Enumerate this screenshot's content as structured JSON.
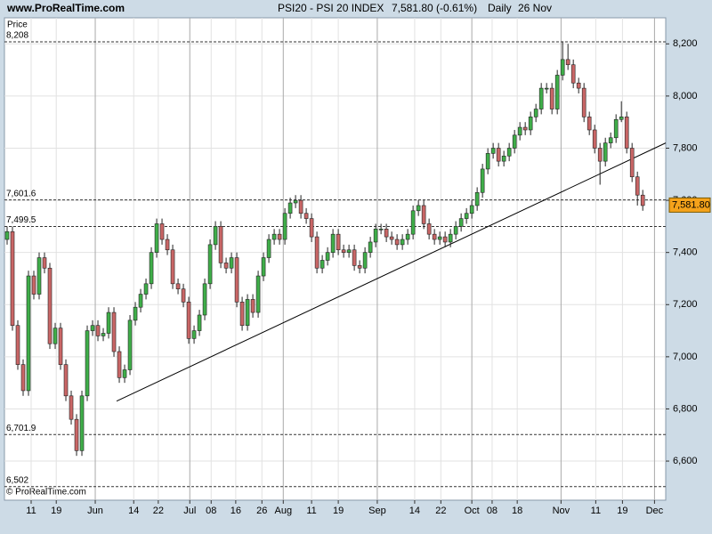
{
  "chart_data": {
    "type": "candlestick",
    "site": "www.ProRealTime.com",
    "title": "PSI20 - PSI 20 INDEX",
    "price_text": "7,581.80 (-0.61%)",
    "period": "Daily",
    "date": "26 Nov",
    "y_label": "Price",
    "copyright": "© ProRealTime.com",
    "up_color": "#3fae49",
    "down_color": "#c96666",
    "candles": [
      [
        7450,
        7500,
        7430,
        7480
      ],
      [
        7480,
        7500,
        7100,
        7120
      ],
      [
        7120,
        7140,
        6950,
        6970
      ],
      [
        6970,
        6990,
        6850,
        6870
      ],
      [
        6870,
        7330,
        6850,
        7310
      ],
      [
        7310,
        7330,
        7220,
        7240
      ],
      [
        7240,
        7400,
        7220,
        7380
      ],
      [
        7380,
        7400,
        7320,
        7340
      ],
      [
        7340,
        7360,
        7030,
        7050
      ],
      [
        7050,
        7130,
        7030,
        7110
      ],
      [
        7110,
        7130,
        6950,
        6970
      ],
      [
        6970,
        6990,
        6830,
        6850
      ],
      [
        6850,
        6870,
        6740,
        6760
      ],
      [
        6760,
        6780,
        6620,
        6640
      ],
      [
        6640,
        6870,
        6620,
        6850
      ],
      [
        6850,
        7120,
        6830,
        7100
      ],
      [
        7100,
        7140,
        7080,
        7120
      ],
      [
        7120,
        7140,
        7060,
        7080
      ],
      [
        7080,
        7110,
        7060,
        7090
      ],
      [
        7090,
        7190,
        7070,
        7170
      ],
      [
        7170,
        7190,
        7000,
        7020
      ],
      [
        7020,
        7040,
        6900,
        6920
      ],
      [
        6920,
        6970,
        6900,
        6950
      ],
      [
        6950,
        7160,
        6930,
        7140
      ],
      [
        7140,
        7210,
        7120,
        7190
      ],
      [
        7190,
        7260,
        7170,
        7240
      ],
      [
        7240,
        7300,
        7220,
        7280
      ],
      [
        7280,
        7420,
        7260,
        7400
      ],
      [
        7400,
        7530,
        7380,
        7510
      ],
      [
        7510,
        7530,
        7430,
        7450
      ],
      [
        7450,
        7470,
        7390,
        7410
      ],
      [
        7410,
        7430,
        7260,
        7280
      ],
      [
        7280,
        7300,
        7240,
        7260
      ],
      [
        7260,
        7280,
        7190,
        7210
      ],
      [
        7210,
        7230,
        7050,
        7070
      ],
      [
        7070,
        7120,
        7050,
        7100
      ],
      [
        7100,
        7180,
        7080,
        7160
      ],
      [
        7160,
        7300,
        7140,
        7280
      ],
      [
        7280,
        7450,
        7260,
        7430
      ],
      [
        7430,
        7520,
        7410,
        7500
      ],
      [
        7500,
        7520,
        7340,
        7360
      ],
      [
        7360,
        7380,
        7320,
        7340
      ],
      [
        7340,
        7400,
        7320,
        7380
      ],
      [
        7380,
        7400,
        7190,
        7210
      ],
      [
        7210,
        7230,
        7100,
        7120
      ],
      [
        7120,
        7240,
        7100,
        7220
      ],
      [
        7220,
        7240,
        7150,
        7170
      ],
      [
        7170,
        7330,
        7150,
        7310
      ],
      [
        7310,
        7400,
        7290,
        7380
      ],
      [
        7380,
        7470,
        7360,
        7450
      ],
      [
        7450,
        7490,
        7430,
        7470
      ],
      [
        7470,
        7490,
        7430,
        7450
      ],
      [
        7450,
        7570,
        7430,
        7550
      ],
      [
        7550,
        7610,
        7530,
        7590
      ],
      [
        7590,
        7620,
        7570,
        7600
      ],
      [
        7600,
        7620,
        7530,
        7550
      ],
      [
        7550,
        7570,
        7510,
        7530
      ],
      [
        7530,
        7550,
        7440,
        7460
      ],
      [
        7460,
        7480,
        7320,
        7340
      ],
      [
        7340,
        7390,
        7320,
        7370
      ],
      [
        7370,
        7420,
        7350,
        7400
      ],
      [
        7400,
        7490,
        7380,
        7470
      ],
      [
        7470,
        7490,
        7390,
        7410
      ],
      [
        7410,
        7430,
        7380,
        7400
      ],
      [
        7400,
        7430,
        7380,
        7410
      ],
      [
        7410,
        7430,
        7330,
        7350
      ],
      [
        7350,
        7370,
        7320,
        7340
      ],
      [
        7340,
        7420,
        7320,
        7400
      ],
      [
        7400,
        7460,
        7380,
        7440
      ],
      [
        7440,
        7510,
        7420,
        7490
      ],
      [
        7490,
        7510,
        7470,
        7490
      ],
      [
        7490,
        7510,
        7440,
        7460
      ],
      [
        7460,
        7480,
        7430,
        7450
      ],
      [
        7450,
        7470,
        7410,
        7430
      ],
      [
        7430,
        7470,
        7410,
        7450
      ],
      [
        7450,
        7490,
        7430,
        7470
      ],
      [
        7470,
        7580,
        7450,
        7560
      ],
      [
        7560,
        7600,
        7540,
        7580
      ],
      [
        7580,
        7600,
        7490,
        7510
      ],
      [
        7510,
        7530,
        7450,
        7470
      ],
      [
        7470,
        7490,
        7430,
        7450
      ],
      [
        7450,
        7480,
        7430,
        7460
      ],
      [
        7460,
        7480,
        7420,
        7440
      ],
      [
        7440,
        7490,
        7420,
        7470
      ],
      [
        7470,
        7520,
        7450,
        7500
      ],
      [
        7500,
        7550,
        7480,
        7530
      ],
      [
        7530,
        7570,
        7510,
        7550
      ],
      [
        7550,
        7600,
        7530,
        7580
      ],
      [
        7580,
        7650,
        7560,
        7630
      ],
      [
        7630,
        7740,
        7610,
        7720
      ],
      [
        7720,
        7800,
        7700,
        7780
      ],
      [
        7780,
        7820,
        7760,
        7800
      ],
      [
        7800,
        7820,
        7730,
        7750
      ],
      [
        7750,
        7790,
        7730,
        7770
      ],
      [
        7770,
        7820,
        7750,
        7800
      ],
      [
        7800,
        7870,
        7780,
        7850
      ],
      [
        7850,
        7900,
        7830,
        7880
      ],
      [
        7880,
        7900,
        7850,
        7870
      ],
      [
        7870,
        7940,
        7850,
        7920
      ],
      [
        7920,
        7970,
        7900,
        7950
      ],
      [
        7950,
        8050,
        7930,
        8030
      ],
      [
        8030,
        8050,
        8010,
        8030
      ],
      [
        8030,
        8050,
        7930,
        7950
      ],
      [
        7950,
        8100,
        7930,
        8080
      ],
      [
        8080,
        8210,
        8060,
        8140
      ],
      [
        8140,
        8200,
        8100,
        8120
      ],
      [
        8120,
        8140,
        8030,
        8050
      ],
      [
        8050,
        8070,
        8010,
        8030
      ],
      [
        8030,
        8050,
        7900,
        7920
      ],
      [
        7920,
        7940,
        7850,
        7870
      ],
      [
        7870,
        7890,
        7780,
        7800
      ],
      [
        7800,
        7820,
        7660,
        7750
      ],
      [
        7750,
        7840,
        7730,
        7820
      ],
      [
        7820,
        7860,
        7800,
        7840
      ],
      [
        7840,
        7930,
        7820,
        7910
      ],
      [
        7910,
        7980,
        7900,
        7920
      ],
      [
        7920,
        7940,
        7780,
        7800
      ],
      [
        7800,
        7820,
        7670,
        7690
      ],
      [
        7690,
        7710,
        7580,
        7620
      ],
      [
        7620,
        7640,
        7560,
        7580
      ]
    ],
    "xlim": [
      -0.5,
      123.3
    ],
    "xticks": [
      {
        "value": 4.5,
        "label": "11"
      },
      {
        "value": 9.2,
        "label": "19"
      },
      {
        "value": 16.5,
        "label": "Jun"
      },
      {
        "value": 23.7,
        "label": "14"
      },
      {
        "value": 28.3,
        "label": "22"
      },
      {
        "value": 34.2,
        "label": "Jul"
      },
      {
        "value": 38.2,
        "label": "08"
      },
      {
        "value": 42.8,
        "label": "16"
      },
      {
        "value": 47.7,
        "label": "26"
      },
      {
        "value": 51.7,
        "label": "Aug"
      },
      {
        "value": 57,
        "label": "11"
      },
      {
        "value": 62,
        "label": "19"
      },
      {
        "value": 69.3,
        "label": "Sep"
      },
      {
        "value": 76.3,
        "label": "14"
      },
      {
        "value": 81.2,
        "label": "22"
      },
      {
        "value": 87,
        "label": "Oct"
      },
      {
        "value": 90.8,
        "label": "08"
      },
      {
        "value": 95.5,
        "label": "18"
      },
      {
        "value": 103.7,
        "label": "Nov"
      },
      {
        "value": 110.2,
        "label": "11"
      },
      {
        "value": 115.2,
        "label": "19"
      },
      {
        "value": 121.2,
        "label": "Dec"
      }
    ],
    "ylim": [
      6450,
      8300
    ],
    "yticks": [
      {
        "value": 6600,
        "label": "6,600"
      },
      {
        "value": 6800,
        "label": "6,800"
      },
      {
        "value": 7000,
        "label": "7,000"
      },
      {
        "value": 7200,
        "label": "7,200"
      },
      {
        "value": 7400,
        "label": "7,400"
      },
      {
        "value": 7600,
        "label": "7,600"
      },
      {
        "value": 7800,
        "label": "7,800"
      },
      {
        "value": 8000,
        "label": "8,000"
      },
      {
        "value": 8200,
        "label": "8,200"
      }
    ],
    "grid": true,
    "levels": [
      {
        "value": 8208,
        "label": "8,208"
      },
      {
        "value": 7601.6,
        "label": "7,601.6"
      },
      {
        "value": 7499.5,
        "label": "7,499.5"
      },
      {
        "value": 6701.9,
        "label": "6,701.9"
      },
      {
        "value": 6502,
        "label": "6,502"
      }
    ],
    "trendline": {
      "x": [
        20.5,
        123.3
      ],
      "y": [
        6830,
        7820
      ]
    },
    "last_price": {
      "value": 7581.8,
      "label": "7,581.80",
      "color": "#f5a21b"
    }
  }
}
